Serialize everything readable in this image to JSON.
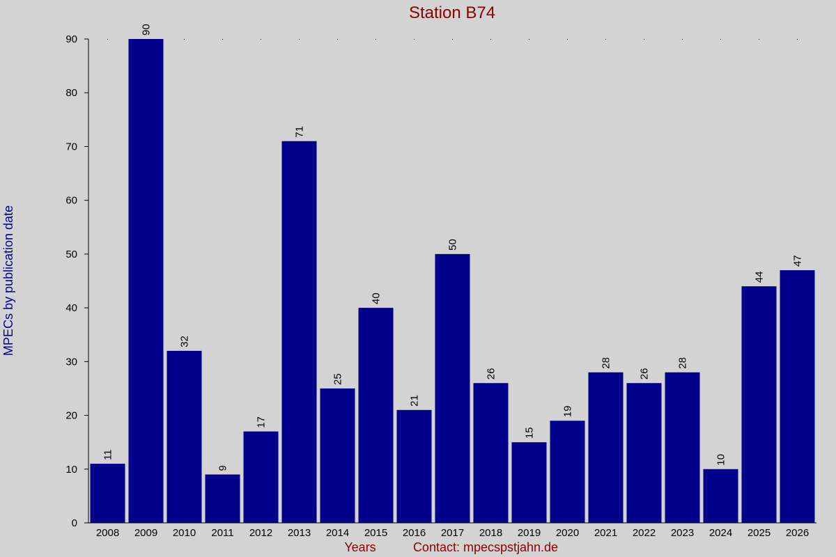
{
  "chart_data": {
    "type": "bar",
    "title": "Station B74",
    "xlabel": "Years",
    "contact": "Contact: mpecspstjahn.de",
    "ylabel": "MPECs by publication date",
    "categories": [
      "2008",
      "2009",
      "2010",
      "2011",
      "2012",
      "2013",
      "2014",
      "2015",
      "2016",
      "2017",
      "2018",
      "2019",
      "2020",
      "2021",
      "2022",
      "2023",
      "2024",
      "2025",
      "2026"
    ],
    "values": [
      11,
      90,
      32,
      9,
      17,
      71,
      25,
      40,
      21,
      50,
      26,
      15,
      19,
      28,
      26,
      28,
      10,
      44,
      47
    ],
    "data_labels": [
      "11",
      "90",
      "32",
      "9",
      "17",
      "71",
      "25",
      "40",
      "21",
      "50",
      "26",
      "15",
      "19",
      "28",
      "26",
      "28",
      "10",
      "44",
      "47"
    ],
    "ylim": [
      0,
      90
    ],
    "yticks": [
      "0",
      "10",
      "20",
      "30",
      "40",
      "50",
      "60",
      "70",
      "80",
      "90"
    ],
    "grid": false,
    "legend": "none",
    "colors": {
      "background": "#d3d3d3",
      "bar": "#00008b",
      "title": "#8b0000",
      "ylabel": "#00008b",
      "xlabel": "#8b0000",
      "axis": "#000000"
    }
  }
}
